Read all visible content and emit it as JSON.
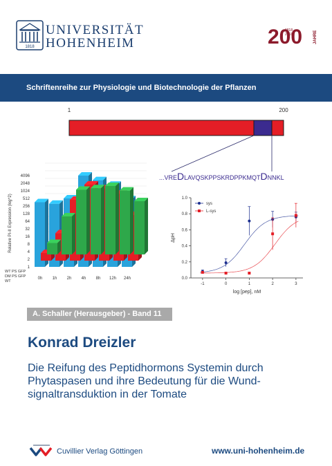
{
  "header": {
    "university_line1": "UNIVERSITÄT",
    "university_line2": "HOHENHEIM",
    "seal_year": "1818",
    "anniversary_number": "200",
    "anniversary_label": "JAHRE",
    "anniversary_years": [
      "1818",
      "2018"
    ]
  },
  "series": "Schriftenreihe zur Physiologie und Biotechnologie der Pflanzen",
  "protein_diagram": {
    "start": "1",
    "end": "200",
    "sequence_prefix": "...VRE",
    "sequence_big1": "D",
    "sequence_middle": "LAVQSKPPSKRDPPKMQT",
    "sequence_big2": "D",
    "sequence_suffix": "NNKL"
  },
  "bar3d_chart": {
    "ylabel": "Relative PI-II Expression (log^2)",
    "yticks": [
      "1",
      "2",
      "4",
      "8",
      "16",
      "32",
      "64",
      "128",
      "256",
      "512",
      "1024",
      "2048",
      "4096"
    ],
    "xticks": [
      "0h",
      "1h",
      "2h",
      "4h",
      "8h",
      "12h",
      "24h"
    ],
    "rows": [
      "WT PS GFP",
      "DM PS GFP",
      "WT"
    ],
    "colors": {
      "WT PS GFP": "#29a3dc",
      "DM PS GFP": "#e41e26",
      "WT": "#2ea84a"
    },
    "values_log2": {
      "WT PS GFP": [
        8.5,
        8.3,
        9.0,
        12.0,
        11.4,
        10.8,
        8.9
      ],
      "DM PS GFP": [
        1.0,
        3.6,
        8.0,
        10.0,
        9.5,
        8.8,
        6.0
      ],
      "WT": [
        1.5,
        5.0,
        8.5,
        8.7,
        9.0,
        8.4,
        7.0
      ]
    }
  },
  "chart_data": {
    "type": "scatter",
    "xlabel": "log [pep], nM",
    "ylabel": "ΔpH",
    "xlim": [
      -1.5,
      3.3
    ],
    "ylim": [
      0.0,
      1.0
    ],
    "xticks": [
      "-1",
      "0",
      "1",
      "2",
      "3"
    ],
    "yticks": [
      "0.0",
      "0.2",
      "0.4",
      "0.6",
      "0.8",
      "1.0"
    ],
    "legend_position": "top-left",
    "series": [
      {
        "name": "sys",
        "color": "#1c2f8f",
        "x": [
          -1,
          0,
          1,
          2,
          3
        ],
        "y": [
          0.08,
          0.19,
          0.71,
          0.73,
          0.76
        ],
        "err": [
          0.02,
          0.05,
          0.18,
          0.1,
          0.06
        ]
      },
      {
        "name": "L-sys",
        "color": "#e41e26",
        "x": [
          -1,
          0,
          1,
          2,
          3
        ],
        "y": [
          0.07,
          0.06,
          0.06,
          0.55,
          0.78
        ],
        "err": [
          0.01,
          0.01,
          0.01,
          0.2,
          0.15
        ]
      }
    ]
  },
  "editor_band": "A. Schaller (Herausgeber) - Band 11",
  "author": "Konrad Dreizler",
  "title_lines": [
    "Die Reifung des Peptidhormons Systemin durch",
    "Phytaspasen und ihre Bedeutung für die Wund-",
    "signaltransduktion in der Tomate"
  ],
  "publisher": "Cuvillier Verlag Göttingen",
  "website": "www.uni-hohenheim.de"
}
